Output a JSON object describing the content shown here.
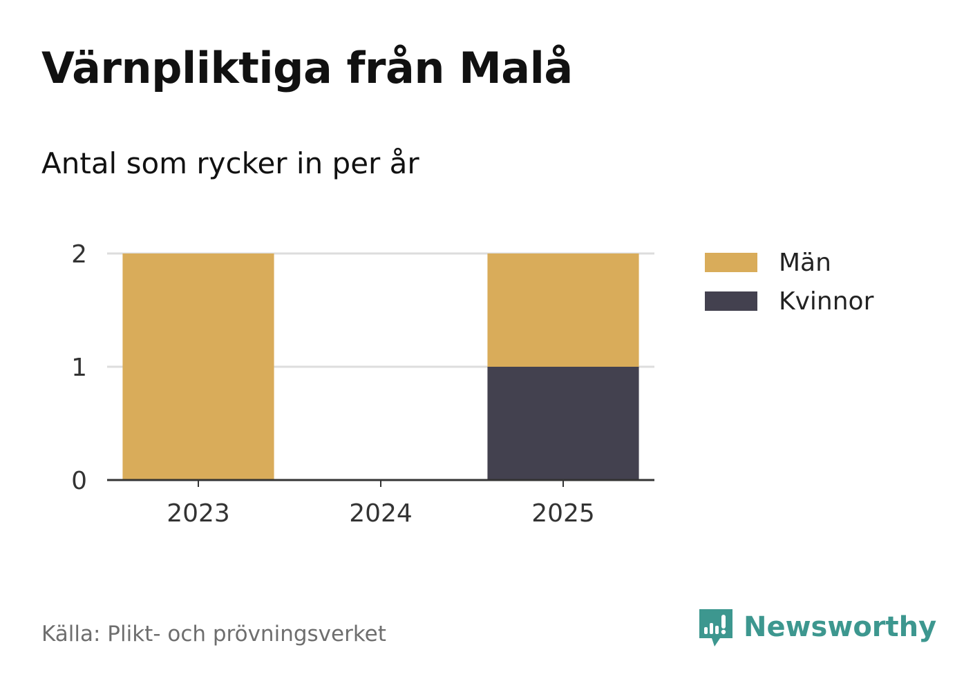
{
  "title": "Värnpliktiga från Malå",
  "subtitle": "Antal som rycker in per år",
  "source": "Källa: Plikt- och prövningsverket",
  "brand": {
    "name": "Newsworthy",
    "icon": "newsworthy-logo-icon",
    "color": "#3d978f"
  },
  "colors": {
    "men": "#d9ac5a",
    "women": "#43414f",
    "grid": "#dddddd",
    "axis": "#333333"
  },
  "chart_data": {
    "type": "bar",
    "stacked": true,
    "categories": [
      "2023",
      "2024",
      "2025"
    ],
    "series": [
      {
        "name": "Män",
        "values": [
          2,
          0,
          1
        ],
        "color": "#d9ac5a"
      },
      {
        "name": "Kvinnor",
        "values": [
          0,
          0,
          1
        ],
        "color": "#43414f"
      }
    ],
    "ylim": [
      0,
      2
    ],
    "yticks": [
      0,
      1,
      2
    ],
    "grid": true,
    "legend_position": "right"
  }
}
